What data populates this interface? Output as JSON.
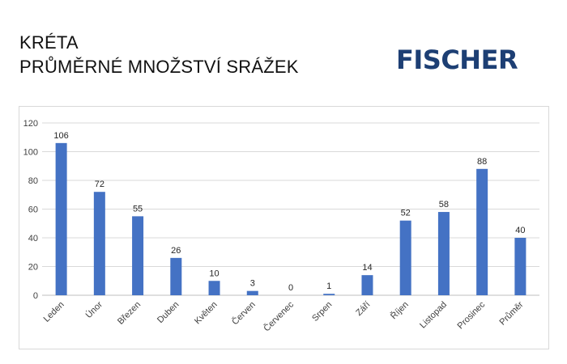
{
  "header": {
    "title_line1": "KRÉTA",
    "title_line2": "PRŮMĚRNÉ MNOŽSTVÍ SRÁŽEK",
    "brand": "FISCHER",
    "brand_color": "#1d3f74"
  },
  "chart_data": {
    "type": "bar",
    "title": "KRÉTA PRŮMĚRNÉ MNOŽSTVÍ SRÁŽEK",
    "categories": [
      "Leden",
      "Únor",
      "Březen",
      "Duben",
      "Květen",
      "Červen",
      "Červenec",
      "Srpen",
      "Září",
      "Říjen",
      "Listopad",
      "Prosinec",
      "Průměr"
    ],
    "values": [
      106,
      72,
      55,
      26,
      10,
      3,
      0,
      1,
      14,
      52,
      58,
      88,
      40
    ],
    "yticks": [
      0,
      20,
      40,
      60,
      80,
      100,
      120
    ],
    "ylim": [
      0,
      120
    ],
    "grid": true,
    "legend": "none",
    "bar_color": "#4472c4"
  }
}
